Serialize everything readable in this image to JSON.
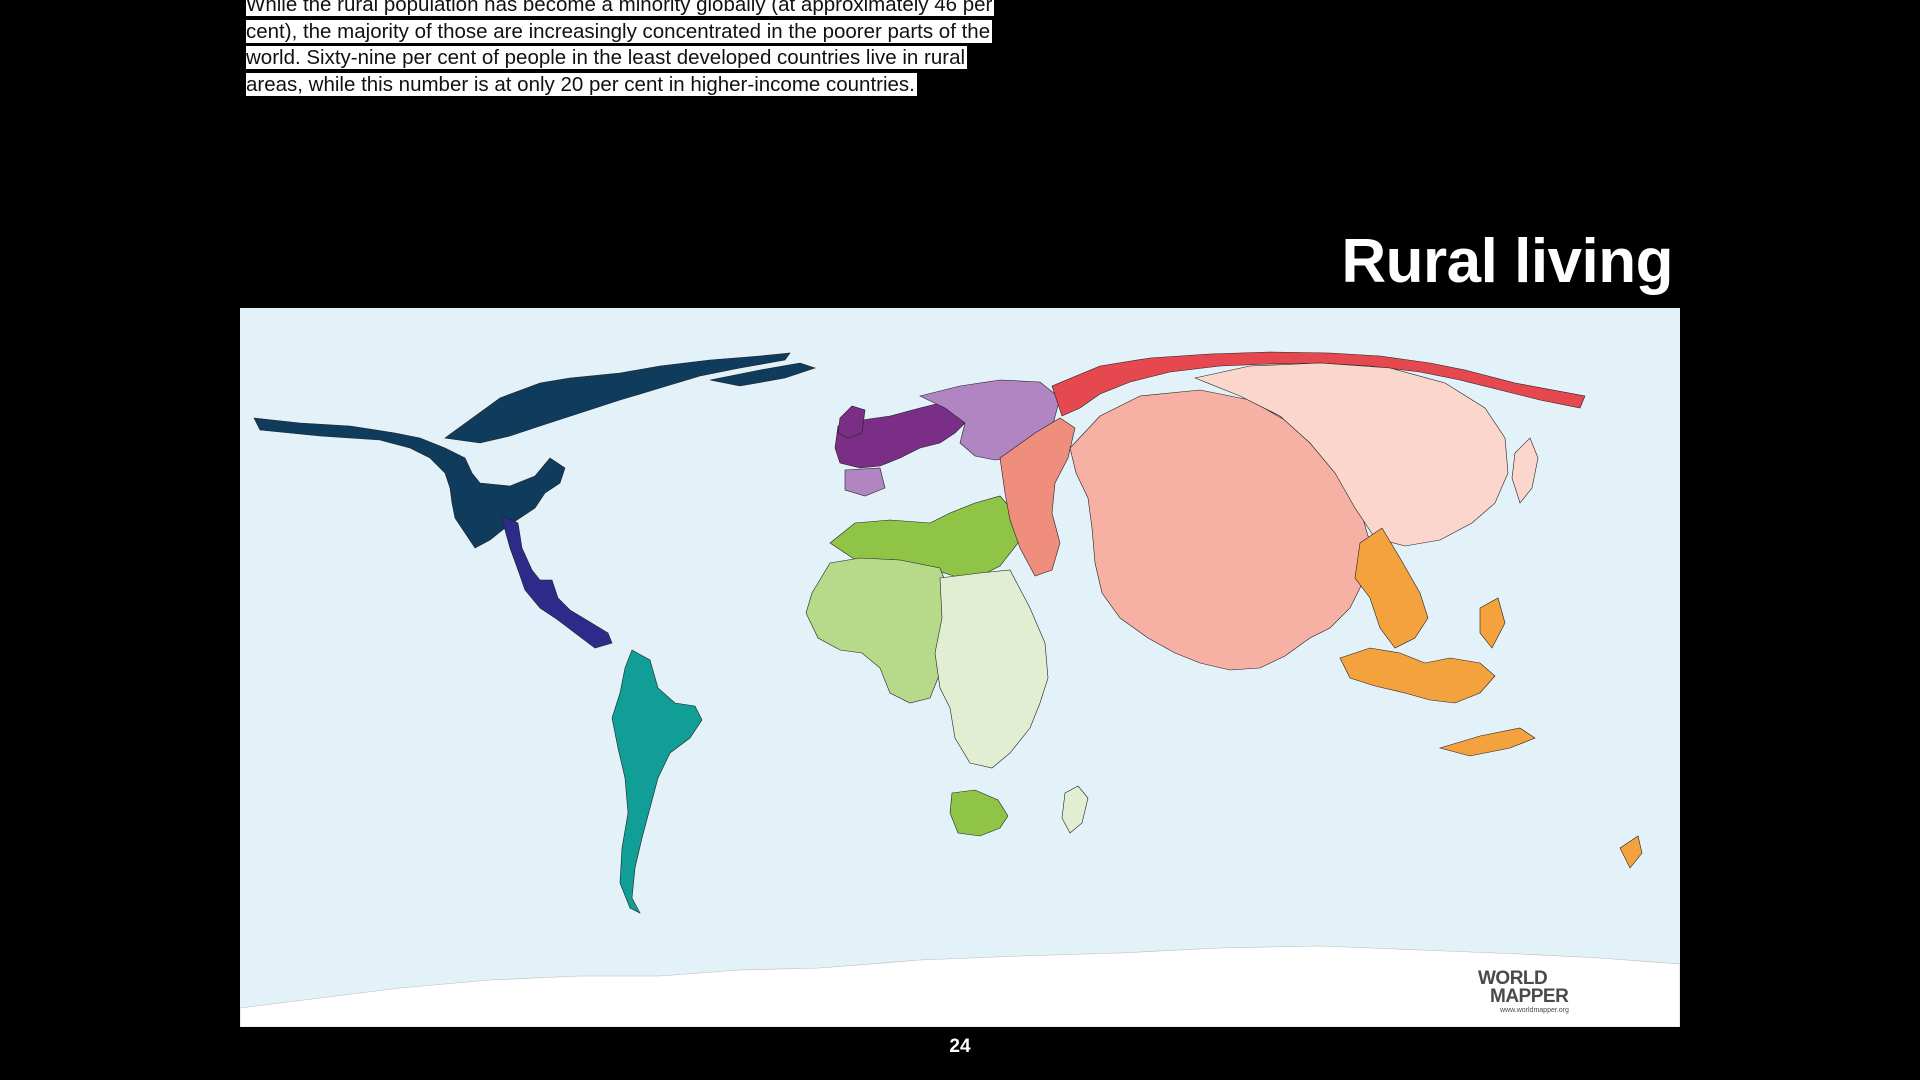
{
  "slide": {
    "body_text": "While the rural population has become a minority globally (at approximately 46 per cent), the majority of those are increasingly concentrated in the poorer parts of the world. Sixty-nine per cent of people in the least developed countries live in rural areas, while this number is at only 20 per cent in higher-income countries.",
    "title": "Rural living",
    "page_number": "24"
  },
  "map": {
    "background_color": "#e3f1f8",
    "logo": {
      "line1": "WORLD",
      "line2": "MAPPER",
      "url": "www.worldmapper.org"
    },
    "region_colors": {
      "north_america": "#0f3b5c",
      "central_america": "#2e2a8a",
      "south_america": "#119e96",
      "western_europe": "#7a2e86",
      "eastern_europe": "#b184c2",
      "north_africa": "#8fc447",
      "west_africa": "#b6d98a",
      "east_southern_africa": "#e2eed2",
      "middle_east": "#f08e7e",
      "russia": "#e5484f",
      "south_asia": "#f6b0a4",
      "east_asia": "#fad6cc",
      "southeast_asia": "#f4a23d",
      "antarctica": "#ffffff"
    }
  }
}
